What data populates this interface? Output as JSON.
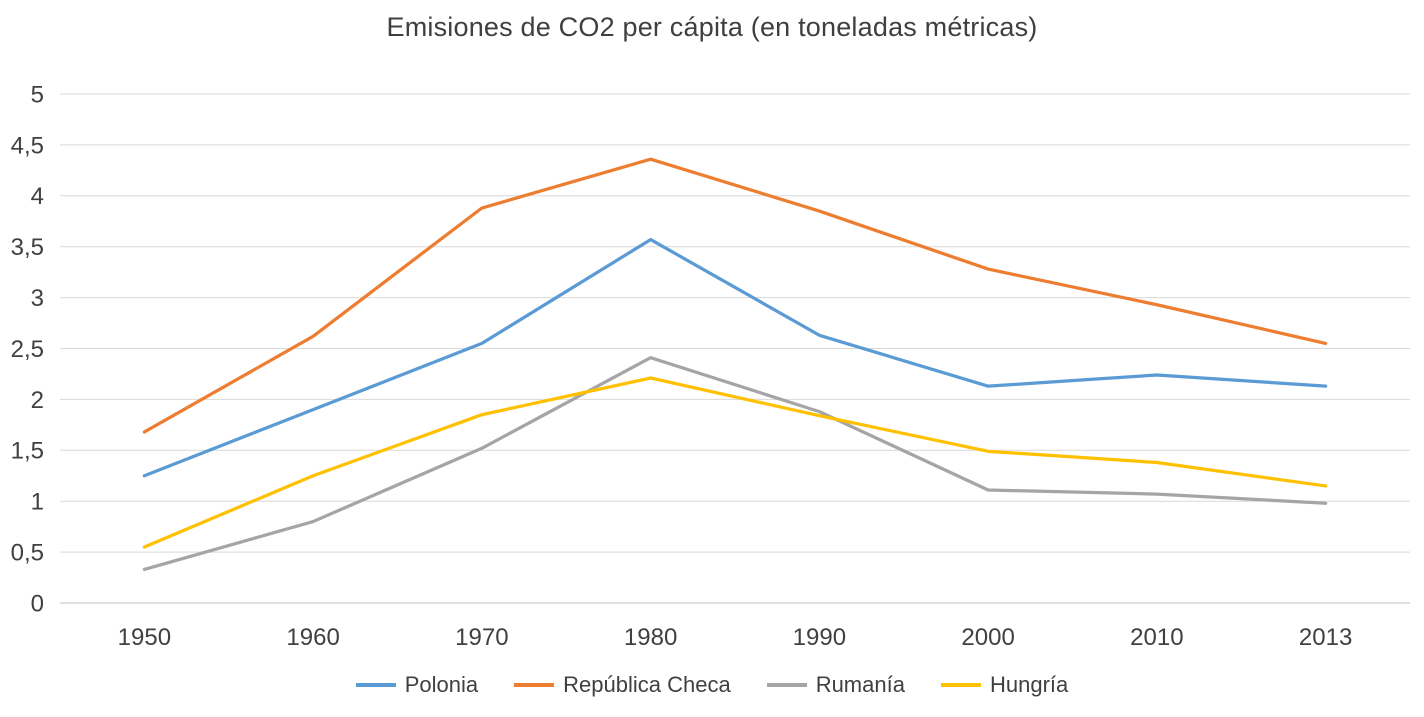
{
  "chart_data": {
    "type": "line",
    "title": "Emisiones de CO2 per cápita (en toneladas métricas)",
    "categories": [
      "1950",
      "1960",
      "1970",
      "1980",
      "1990",
      "2000",
      "2010",
      "2013"
    ],
    "series": [
      {
        "name": "Polonia",
        "color": "#5B9BD5",
        "values": [
          1.25,
          1.9,
          2.55,
          3.57,
          2.63,
          2.13,
          2.24,
          2.13
        ]
      },
      {
        "name": "República Checa",
        "color": "#ED7D31",
        "values": [
          1.68,
          2.62,
          3.88,
          4.36,
          3.85,
          3.28,
          2.93,
          2.55
        ]
      },
      {
        "name": "Rumanía",
        "color": "#A5A5A5",
        "values": [
          0.33,
          0.8,
          1.52,
          2.41,
          1.88,
          1.11,
          1.07,
          0.98
        ]
      },
      {
        "name": "Hungría",
        "color": "#FFC000",
        "values": [
          0.55,
          1.25,
          1.85,
          2.21,
          1.84,
          1.49,
          1.38,
          1.15
        ]
      }
    ],
    "xlabel": "",
    "ylabel": "",
    "ylim": [
      0,
      5
    ],
    "y_ticks": [
      0,
      0.5,
      1,
      1.5,
      2,
      2.5,
      3,
      3.5,
      4,
      4.5,
      5
    ],
    "y_tick_labels": [
      "0",
      "0,5",
      "1",
      "1,5",
      "2",
      "2,5",
      "3",
      "3,5",
      "4",
      "4,5",
      "5"
    ],
    "grid": true,
    "gridline_color": "#D9D9D9",
    "axis_line_color": "#BFBFBF",
    "legend_position": "bottom"
  }
}
